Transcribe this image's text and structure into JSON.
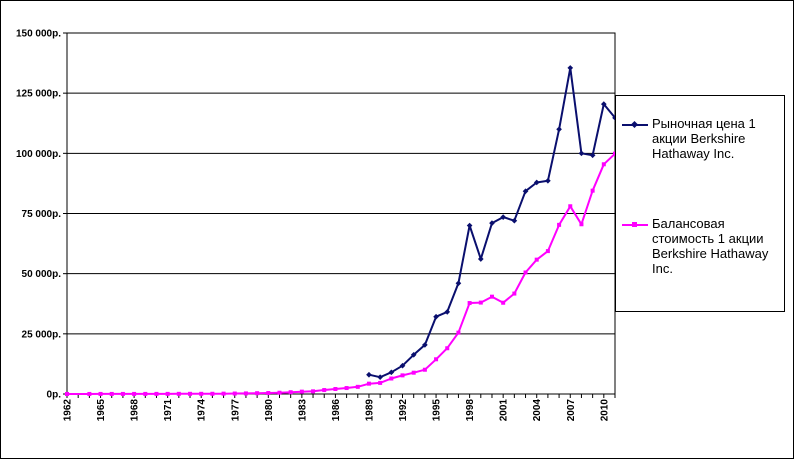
{
  "chart_data": {
    "type": "line",
    "title": "",
    "xlabel": "",
    "ylabel": "",
    "ylim": [
      0,
      150000
    ],
    "yticks": [
      {
        "value": 0,
        "label": "0р."
      },
      {
        "value": 25000,
        "label": "25 000р."
      },
      {
        "value": 50000,
        "label": "50 000р."
      },
      {
        "value": 75000,
        "label": "75 000р."
      },
      {
        "value": 100000,
        "label": "100 000р."
      },
      {
        "value": 125000,
        "label": "125 000р."
      },
      {
        "value": 150000,
        "label": "150 000р."
      }
    ],
    "xlim": [
      1962,
      2011
    ],
    "xtick_labels": [
      "1962",
      "1965",
      "1968",
      "1971",
      "1974",
      "1977",
      "1980",
      "1983",
      "1986",
      "1989",
      "1992",
      "1995",
      "1998",
      "2001",
      "2004",
      "2007",
      "2010"
    ],
    "grid": true,
    "legend_position": "right",
    "series": [
      {
        "name": "Рыночная цена 1 акции Berkshire Hathaway Inc.",
        "color": "#0a0f6e",
        "marker": "diamond",
        "points": [
          [
            1989,
            8000
          ],
          [
            1990,
            7000
          ],
          [
            1991,
            9000
          ],
          [
            1992,
            11750
          ],
          [
            1993,
            16300
          ],
          [
            1994,
            20400
          ],
          [
            1995,
            32100
          ],
          [
            1996,
            34100
          ],
          [
            1997,
            46000
          ],
          [
            1998,
            70000
          ],
          [
            1999,
            56100
          ],
          [
            2000,
            71000
          ],
          [
            2001,
            73500
          ],
          [
            2002,
            72000
          ],
          [
            2003,
            84250
          ],
          [
            2004,
            87900
          ],
          [
            2005,
            88600
          ],
          [
            2006,
            110000
          ],
          [
            2007,
            135500
          ],
          [
            2008,
            100000
          ],
          [
            2009,
            99200
          ],
          [
            2010,
            120450
          ],
          [
            2011,
            114750
          ]
        ]
      },
      {
        "name": "Балансовая стоимость 1 акции Berkshire Hathaway Inc.",
        "color": "#ff00ff",
        "marker": "square",
        "points": [
          [
            1962,
            0
          ],
          [
            1964,
            19
          ],
          [
            1965,
            24
          ],
          [
            1966,
            26
          ],
          [
            1967,
            29
          ],
          [
            1968,
            35
          ],
          [
            1969,
            40
          ],
          [
            1970,
            43
          ],
          [
            1971,
            51
          ],
          [
            1972,
            63
          ],
          [
            1973,
            70
          ],
          [
            1974,
            74
          ],
          [
            1975,
            91
          ],
          [
            1976,
            145
          ],
          [
            1977,
            191
          ],
          [
            1978,
            243
          ],
          [
            1979,
            336
          ],
          [
            1980,
            401
          ],
          [
            1981,
            527
          ],
          [
            1982,
            738
          ],
          [
            1983,
            976
          ],
          [
            1984,
            1109
          ],
          [
            1985,
            1644
          ],
          [
            1986,
            2073
          ],
          [
            1987,
            2477
          ],
          [
            1988,
            2974
          ],
          [
            1989,
            4296
          ],
          [
            1990,
            4612
          ],
          [
            1991,
            6437
          ],
          [
            1992,
            7745
          ],
          [
            1993,
            8854
          ],
          [
            1994,
            10083
          ],
          [
            1995,
            14426
          ],
          [
            1996,
            19011
          ],
          [
            1997,
            25488
          ],
          [
            1998,
            37801
          ],
          [
            1999,
            37987
          ],
          [
            2000,
            40442
          ],
          [
            2001,
            37920
          ],
          [
            2002,
            41727
          ],
          [
            2003,
            50498
          ],
          [
            2004,
            55824
          ],
          [
            2005,
            59377
          ],
          [
            2006,
            70281
          ],
          [
            2007,
            78008
          ],
          [
            2008,
            70530
          ],
          [
            2009,
            84487
          ],
          [
            2010,
            95453
          ],
          [
            2011,
            99860
          ]
        ]
      }
    ]
  }
}
